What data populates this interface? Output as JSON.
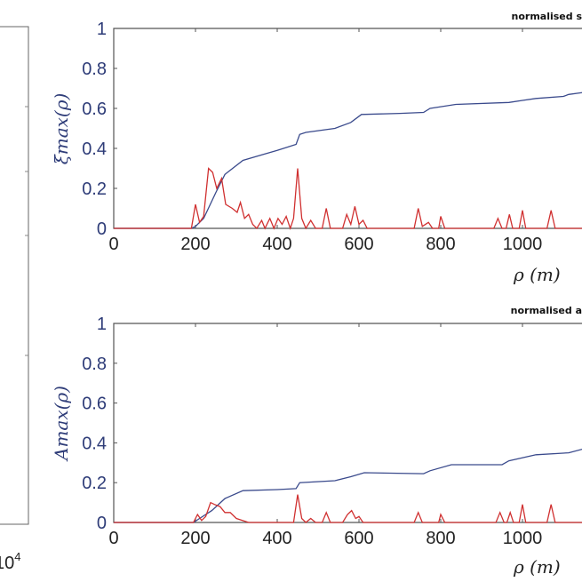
{
  "colors": {
    "blue_series": "#3a4a8c",
    "red_series": "#d03030",
    "axis": "#555555",
    "tick_label": "#2e3c78"
  },
  "left_panel": {
    "exponent_label": "10",
    "exponent_sup": "4"
  },
  "chart_data": [
    {
      "type": "line",
      "title": "normalised s",
      "xlabel": "ρ (m)",
      "ylabel": "ξmax(ρ)",
      "xlim": [
        0,
        1150
      ],
      "ylim": [
        0,
        1
      ],
      "xticks": [
        "0",
        "200",
        "400",
        "600",
        "800",
        "1000"
      ],
      "yticks": [
        "0",
        "0.2",
        "0.4",
        "0.6",
        "0.8",
        "1"
      ],
      "grid": false,
      "series": [
        {
          "color": "blue",
          "points": [
            [
              0,
              0
            ],
            [
              190,
              0
            ],
            [
              200,
              0.01
            ],
            [
              220,
              0.05
            ],
            [
              250,
              0.18
            ],
            [
              272,
              0.27
            ],
            [
              316,
              0.34
            ],
            [
              366,
              0.37
            ],
            [
              400,
              0.39
            ],
            [
              446,
              0.42
            ],
            [
              455,
              0.47
            ],
            [
              470,
              0.48
            ],
            [
              541,
              0.5
            ],
            [
              580,
              0.53
            ],
            [
              606,
              0.57
            ],
            [
              700,
              0.575
            ],
            [
              758,
              0.58
            ],
            [
              774,
              0.6
            ],
            [
              837,
              0.62
            ],
            [
              967,
              0.63
            ],
            [
              1000,
              0.64
            ],
            [
              1033,
              0.65
            ],
            [
              1100,
              0.66
            ],
            [
              1113,
              0.67
            ],
            [
              1150,
              0.68
            ]
          ]
        },
        {
          "color": "red",
          "points": [
            [
              0,
              0
            ],
            [
              190,
              0
            ],
            [
              200,
              0.12
            ],
            [
              210,
              0.03
            ],
            [
              220,
              0.06
            ],
            [
              232,
              0.3
            ],
            [
              242,
              0.28
            ],
            [
              252,
              0.2
            ],
            [
              264,
              0.25
            ],
            [
              274,
              0.12
            ],
            [
              290,
              0.1
            ],
            [
              302,
              0.08
            ],
            [
              310,
              0.13
            ],
            [
              320,
              0.05
            ],
            [
              330,
              0.07
            ],
            [
              340,
              0.02
            ],
            [
              350,
              0
            ],
            [
              362,
              0.04
            ],
            [
              370,
              0
            ],
            [
              382,
              0.05
            ],
            [
              392,
              0
            ],
            [
              402,
              0.05
            ],
            [
              412,
              0.02
            ],
            [
              422,
              0.06
            ],
            [
              432,
              0
            ],
            [
              440,
              0.05
            ],
            [
              450,
              0.3
            ],
            [
              460,
              0.05
            ],
            [
              470,
              0
            ],
            [
              482,
              0.04
            ],
            [
              494,
              0
            ],
            [
              510,
              0
            ],
            [
              520,
              0.1
            ],
            [
              530,
              0
            ],
            [
              560,
              0
            ],
            [
              570,
              0.07
            ],
            [
              580,
              0.02
            ],
            [
              590,
              0.11
            ],
            [
              600,
              0.02
            ],
            [
              610,
              0.04
            ],
            [
              620,
              0
            ],
            [
              735,
              0
            ],
            [
              745,
              0.1
            ],
            [
              755,
              0.01
            ],
            [
              770,
              0.03
            ],
            [
              780,
              0
            ],
            [
              795,
              0
            ],
            [
              800,
              0.06
            ],
            [
              810,
              0
            ],
            [
              930,
              0
            ],
            [
              940,
              0.05
            ],
            [
              950,
              0
            ],
            [
              960,
              0
            ],
            [
              968,
              0.07
            ],
            [
              976,
              0
            ],
            [
              992,
              0
            ],
            [
              1000,
              0.09
            ],
            [
              1008,
              0
            ],
            [
              1060,
              0
            ],
            [
              1070,
              0.09
            ],
            [
              1080,
              0
            ],
            [
              1150,
              0
            ]
          ]
        }
      ]
    },
    {
      "type": "line",
      "title": "normalised a",
      "xlabel": "ρ (m)",
      "ylabel": "Amax(ρ)",
      "xlim": [
        0,
        1150
      ],
      "ylim": [
        0,
        1
      ],
      "xticks": [
        "0",
        "200",
        "400",
        "600",
        "800",
        "1000"
      ],
      "yticks": [
        "0",
        "0.2",
        "0.4",
        "0.6",
        "0.8",
        "1"
      ],
      "grid": false,
      "series": [
        {
          "color": "blue",
          "points": [
            [
              0,
              0
            ],
            [
              195,
              0
            ],
            [
              210,
              0.02
            ],
            [
              240,
              0.06
            ],
            [
              272,
              0.12
            ],
            [
              316,
              0.16
            ],
            [
              400,
              0.165
            ],
            [
              446,
              0.17
            ],
            [
              455,
              0.2
            ],
            [
              541,
              0.21
            ],
            [
              580,
              0.23
            ],
            [
              613,
              0.25
            ],
            [
              758,
              0.245
            ],
            [
              774,
              0.26
            ],
            [
              826,
              0.29
            ],
            [
              950,
              0.29
            ],
            [
              967,
              0.31
            ],
            [
              1033,
              0.34
            ],
            [
              1113,
              0.35
            ],
            [
              1150,
              0.37
            ]
          ]
        },
        {
          "color": "red",
          "points": [
            [
              0,
              0
            ],
            [
              195,
              0
            ],
            [
              205,
              0.04
            ],
            [
              215,
              0.01
            ],
            [
              225,
              0.03
            ],
            [
              237,
              0.1
            ],
            [
              247,
              0.09
            ],
            [
              260,
              0.08
            ],
            [
              272,
              0.05
            ],
            [
              285,
              0.05
            ],
            [
              300,
              0.02
            ],
            [
              315,
              0.01
            ],
            [
              330,
              0
            ],
            [
              440,
              0
            ],
            [
              450,
              0.14
            ],
            [
              460,
              0.02
            ],
            [
              470,
              0
            ],
            [
              482,
              0.02
            ],
            [
              494,
              0
            ],
            [
              510,
              0
            ],
            [
              520,
              0.05
            ],
            [
              530,
              0
            ],
            [
              560,
              0
            ],
            [
              572,
              0.04
            ],
            [
              582,
              0.06
            ],
            [
              592,
              0.02
            ],
            [
              600,
              0.03
            ],
            [
              610,
              0
            ],
            [
              735,
              0
            ],
            [
              745,
              0.05
            ],
            [
              755,
              0
            ],
            [
              795,
              0
            ],
            [
              800,
              0.04
            ],
            [
              810,
              0
            ],
            [
              935,
              0
            ],
            [
              945,
              0.05
            ],
            [
              955,
              0
            ],
            [
              962,
              0
            ],
            [
              970,
              0.05
            ],
            [
              978,
              0
            ],
            [
              992,
              0
            ],
            [
              1000,
              0.09
            ],
            [
              1008,
              0
            ],
            [
              1060,
              0
            ],
            [
              1070,
              0.09
            ],
            [
              1080,
              0
            ],
            [
              1150,
              0
            ]
          ]
        }
      ]
    }
  ]
}
